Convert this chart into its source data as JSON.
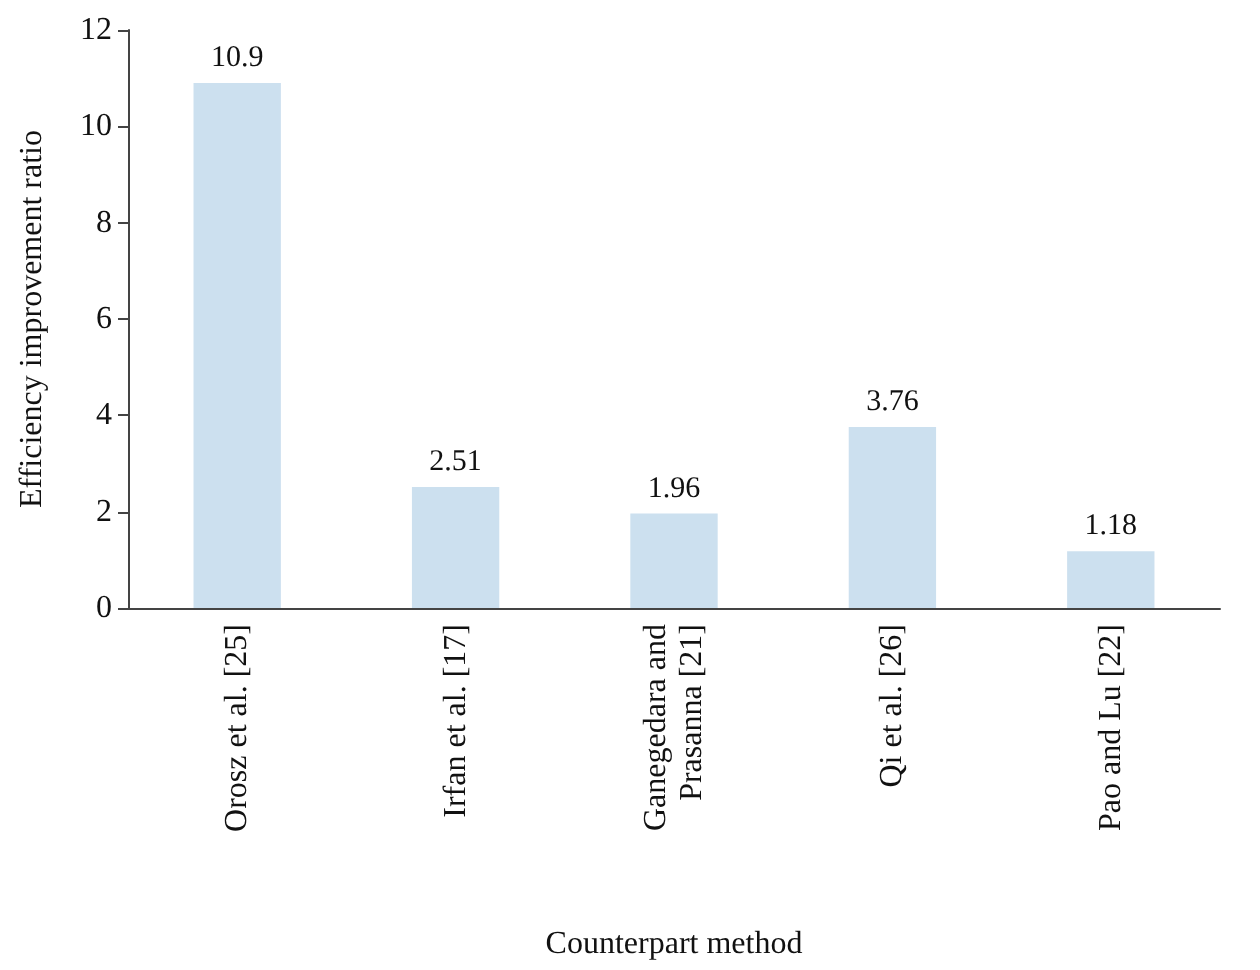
{
  "chart_data": {
    "type": "bar",
    "xlabel": "Counterpart method",
    "ylabel": "Efficiency improvement ratio",
    "categories": [
      "Orosz et al. [25]",
      "Irfan et al. [17]",
      "Ganegedara and Prasanna [21]",
      "Qi et al. [26]",
      "Pao and Lu [22]"
    ],
    "values": [
      10.9,
      2.51,
      1.96,
      3.76,
      1.18
    ],
    "color": "#cce0ef",
    "ylim": [
      0,
      12
    ],
    "yticks": [
      0,
      2,
      4,
      6,
      8,
      10,
      12
    ],
    "grid": false,
    "data_labels": true
  }
}
